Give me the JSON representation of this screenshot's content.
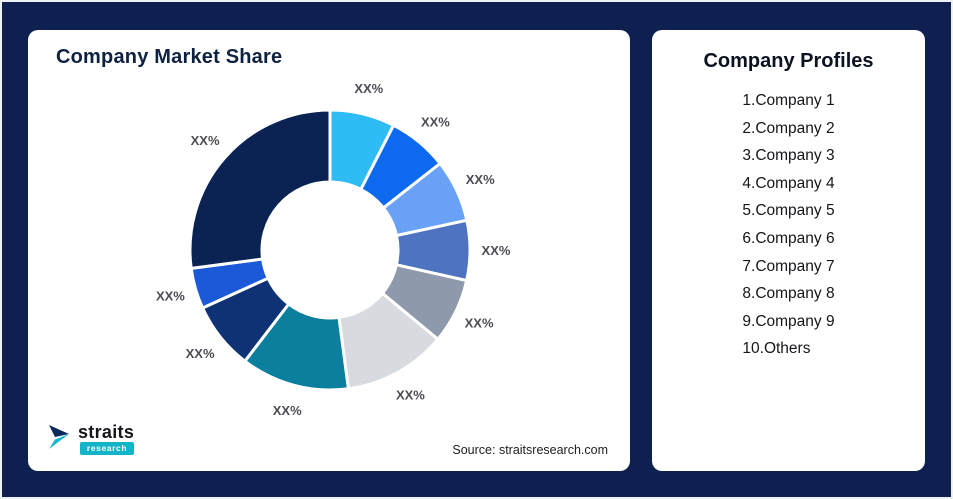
{
  "page": {
    "background_color": "#0e2050"
  },
  "market_share_card": {
    "title": "Company Market Share",
    "source": "Source: straitsresearch.com"
  },
  "logo": {
    "name": "straits",
    "subtitle": "research",
    "accent_color": "#14b4c8",
    "dark_color": "#0a2a5e"
  },
  "profiles_card": {
    "title": "Company Profiles",
    "items": [
      "1.Company 1",
      "2.Company 2",
      "3.Company 3",
      "4.Company 4",
      "5.Company 5",
      "6.Company 6",
      "7.Company 7",
      "8.Company 8",
      "9.Company 9",
      "10.Others"
    ]
  },
  "chart_data": {
    "type": "pie",
    "subtype": "donut",
    "title": "Company Market Share",
    "legend_position": "none",
    "inner_radius_ratio": 0.49,
    "start_angle_deg": 0,
    "direction": "clockwise",
    "segments": [
      {
        "label": "XX%",
        "value": 7.5,
        "color": "#2fbcf5"
      },
      {
        "label": "XX%",
        "value": 6.9,
        "color": "#0d6aee"
      },
      {
        "label": "XX%",
        "value": 7.2,
        "color": "#68a1f6"
      },
      {
        "label": "XX%",
        "value": 6.9,
        "color": "#4d73c1"
      },
      {
        "label": "XX%",
        "value": 7.5,
        "color": "#8e99ab"
      },
      {
        "label": "XX%",
        "value": 11.9,
        "color": "#d7dade"
      },
      {
        "label": "XX%",
        "value": 12.5,
        "color": "#0d7f9e"
      },
      {
        "label": "XX%",
        "value": 7.8,
        "color": "#0e3273"
      },
      {
        "label": "XX%",
        "value": 4.7,
        "color": "#1b59d8"
      },
      {
        "label": "XX%",
        "value": 27.1,
        "color": "#0b2353"
      }
    ]
  }
}
